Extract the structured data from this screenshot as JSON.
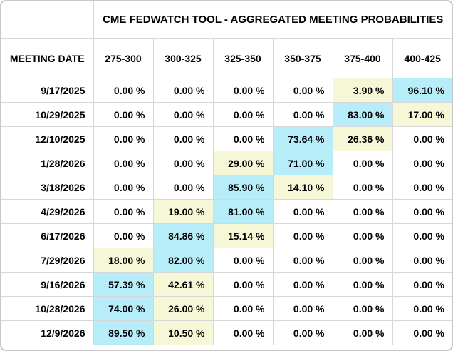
{
  "widget": {
    "title": "CME FEDWATCH TOOL - AGGREGATED MEETING PROBABILITIES"
  },
  "table": {
    "date_header": "MEETING DATE",
    "rate_headers": [
      "275-300",
      "300-325",
      "325-350",
      "350-375",
      "375-400",
      "400-425"
    ],
    "rows": [
      {
        "date": "9/17/2025",
        "values": [
          "0.00 %",
          "0.00 %",
          "0.00 %",
          "0.00 %",
          "3.90 %",
          "96.10 %"
        ],
        "highlights": [
          "",
          "",
          "",
          "",
          "second",
          "max"
        ]
      },
      {
        "date": "10/29/2025",
        "values": [
          "0.00 %",
          "0.00 %",
          "0.00 %",
          "0.00 %",
          "83.00 %",
          "17.00 %"
        ],
        "highlights": [
          "",
          "",
          "",
          "",
          "max",
          "second"
        ]
      },
      {
        "date": "12/10/2025",
        "values": [
          "0.00 %",
          "0.00 %",
          "0.00 %",
          "73.64 %",
          "26.36 %",
          "0.00 %"
        ],
        "highlights": [
          "",
          "",
          "",
          "max",
          "second",
          ""
        ]
      },
      {
        "date": "1/28/2026",
        "values": [
          "0.00 %",
          "0.00 %",
          "29.00 %",
          "71.00 %",
          "0.00 %",
          "0.00 %"
        ],
        "highlights": [
          "",
          "",
          "second",
          "max",
          "",
          ""
        ]
      },
      {
        "date": "3/18/2026",
        "values": [
          "0.00 %",
          "0.00 %",
          "85.90 %",
          "14.10 %",
          "0.00 %",
          "0.00 %"
        ],
        "highlights": [
          "",
          "",
          "max",
          "second",
          "",
          ""
        ]
      },
      {
        "date": "4/29/2026",
        "values": [
          "0.00 %",
          "19.00 %",
          "81.00 %",
          "0.00 %",
          "0.00 %",
          "0.00 %"
        ],
        "highlights": [
          "",
          "second",
          "max",
          "",
          "",
          ""
        ]
      },
      {
        "date": "6/17/2026",
        "values": [
          "0.00 %",
          "84.86 %",
          "15.14 %",
          "0.00 %",
          "0.00 %",
          "0.00 %"
        ],
        "highlights": [
          "",
          "max",
          "second",
          "",
          "",
          ""
        ]
      },
      {
        "date": "7/29/2026",
        "values": [
          "18.00 %",
          "82.00 %",
          "0.00 %",
          "0.00 %",
          "0.00 %",
          "0.00 %"
        ],
        "highlights": [
          "second",
          "max",
          "",
          "",
          "",
          ""
        ]
      },
      {
        "date": "9/16/2026",
        "values": [
          "57.39 %",
          "42.61 %",
          "0.00 %",
          "0.00 %",
          "0.00 %",
          "0.00 %"
        ],
        "highlights": [
          "max",
          "second",
          "",
          "",
          "",
          ""
        ]
      },
      {
        "date": "10/28/2026",
        "values": [
          "74.00 %",
          "26.00 %",
          "0.00 %",
          "0.00 %",
          "0.00 %",
          "0.00 %"
        ],
        "highlights": [
          "max",
          "second",
          "",
          "",
          "",
          ""
        ]
      },
      {
        "date": "12/9/2026",
        "values": [
          "89.50 %",
          "10.50 %",
          "0.00 %",
          "0.00 %",
          "0.00 %",
          "0.00 %"
        ],
        "highlights": [
          "max",
          "second",
          "",
          "",
          "",
          ""
        ]
      }
    ]
  },
  "colors": {
    "highlight_top": "#B7EDF8",
    "highlight_second": "#F6F7D6",
    "grid_border": "#D7D7D7",
    "frame_border": "#C8C8C8",
    "text": "#000000",
    "background": "#FFFFFF"
  }
}
